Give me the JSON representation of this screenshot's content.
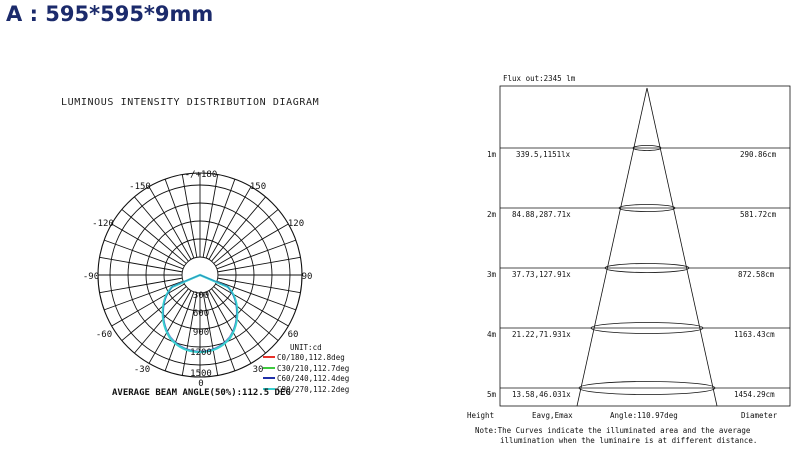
{
  "heading": "A : 595*595*9mm",
  "polar": {
    "title": "LUMINOUS INTENSITY DISTRIBUTION DIAGRAM",
    "angle_labels": [
      "-/+180",
      "150",
      "-150",
      "120",
      "-120",
      "90",
      "-90",
      "60",
      "-60",
      "-30",
      "30",
      "0"
    ],
    "intensity_labels": [
      "300",
      "600",
      "900",
      "1200",
      "1500"
    ],
    "unit": "UNIT:cd",
    "legend": [
      {
        "label": "C0/180,112.8deg",
        "color": "#e8322a"
      },
      {
        "label": "C30/210,112.7deg",
        "color": "#3ec93e"
      },
      {
        "label": "C60/240,112.4deg",
        "color": "#1f2fa8"
      },
      {
        "label": "C90/270,112.2deg",
        "color": "#39d0d0"
      }
    ],
    "beam_angle": "AVERAGE BEAM ANGLE(50%):112.5 DEG"
  },
  "cone": {
    "flux": "Flux out:2345 lm",
    "rows": [
      {
        "height": "1m",
        "eavg": "339.5,1151lx",
        "diameter": "290.86cm"
      },
      {
        "height": "2m",
        "eavg": "84.88,287.71x",
        "diameter": "581.72cm"
      },
      {
        "height": "3m",
        "eavg": "37.73,127.91x",
        "diameter": "872.58cm"
      },
      {
        "height": "4m",
        "eavg": "21.22,71.931x",
        "diameter": "1163.43cm"
      },
      {
        "height": "5m",
        "eavg": "13.58,46.031x",
        "diameter": "1454.29cm"
      }
    ],
    "footer": {
      "height": "Height",
      "eavg": "Eavg,Emax",
      "angle": "Angle:110.97deg",
      "diameter": "Diameter"
    },
    "note_line1": "Note:The Curves indicate the illuminated area and the average",
    "note_line2": "illumination when the luminaire is at different distance."
  }
}
